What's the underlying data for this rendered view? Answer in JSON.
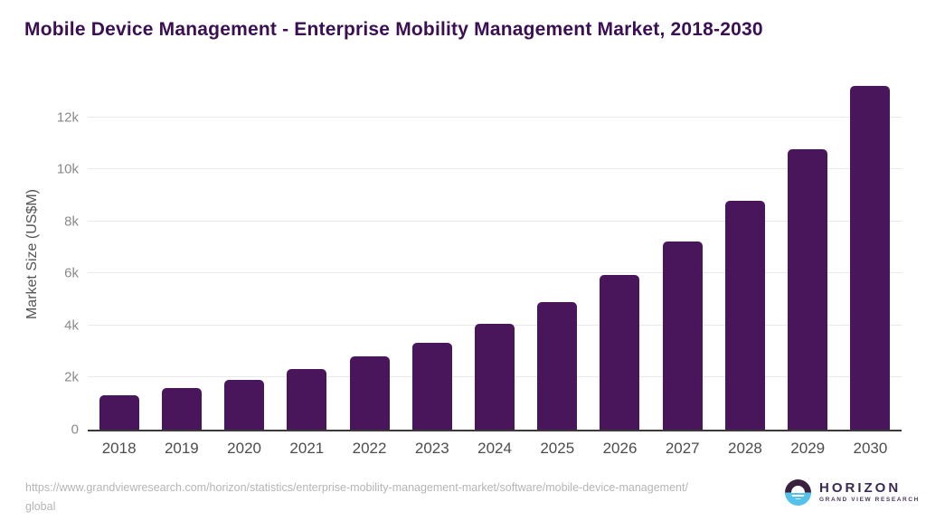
{
  "chart_data": {
    "type": "bar",
    "title": "Mobile Device Management - Enterprise Mobility Management Market, 2018-2030",
    "xlabel": "",
    "ylabel": "Market Size (US$M)",
    "categories": [
      "2018",
      "2019",
      "2020",
      "2021",
      "2022",
      "2023",
      "2024",
      "2025",
      "2026",
      "2027",
      "2028",
      "2029",
      "2030"
    ],
    "values": [
      1310,
      1590,
      1930,
      2320,
      2820,
      3350,
      4080,
      4910,
      5950,
      7230,
      8780,
      10790,
      13210
    ],
    "ylim": [
      0,
      13560
    ],
    "yticks": [
      {
        "value": 0,
        "label": "0"
      },
      {
        "value": 2000,
        "label": "2k"
      },
      {
        "value": 4000,
        "label": "4k"
      },
      {
        "value": 6000,
        "label": "6k"
      },
      {
        "value": 8000,
        "label": "8k"
      },
      {
        "value": 10000,
        "label": "10k"
      },
      {
        "value": 12000,
        "label": "12k"
      }
    ],
    "grid": true,
    "legend": "none",
    "bar_color": "#49165c"
  },
  "footer": {
    "source_lines": [
      "https://www.grandviewresearch.com/horizon/statistics/enterprise-mobility-management-market/software/mobile-device-management/",
      "global"
    ],
    "logo": {
      "name": "HORIZON",
      "subtitle": "GRAND VIEW RESEARCH"
    }
  },
  "colors": {
    "title": "#3b1053",
    "bar": "#49165c",
    "gridline": "#e9e9e9",
    "axis_line": "#3a3a3a",
    "logo_purple": "#39203f",
    "logo_blue": "#55c3e9"
  }
}
